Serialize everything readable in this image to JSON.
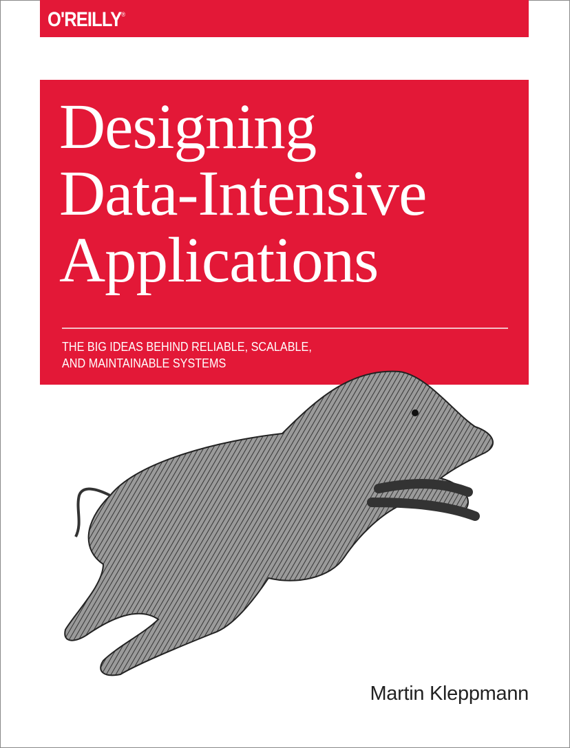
{
  "publisher": {
    "logo": "O'REILLY",
    "mark": "®"
  },
  "book": {
    "title_lines": [
      "Designing",
      "Data-Intensive",
      "Applications"
    ],
    "subtitle_lines": [
      "THE BIG IDEAS BEHIND RELIABLE, SCALABLE,",
      "AND MAINTAINABLE SYSTEMS"
    ],
    "author": "Martin Kleppmann"
  },
  "colors": {
    "brand_red": "#e31837",
    "text": "#222222"
  },
  "illustration": "wild-boar-engraving"
}
